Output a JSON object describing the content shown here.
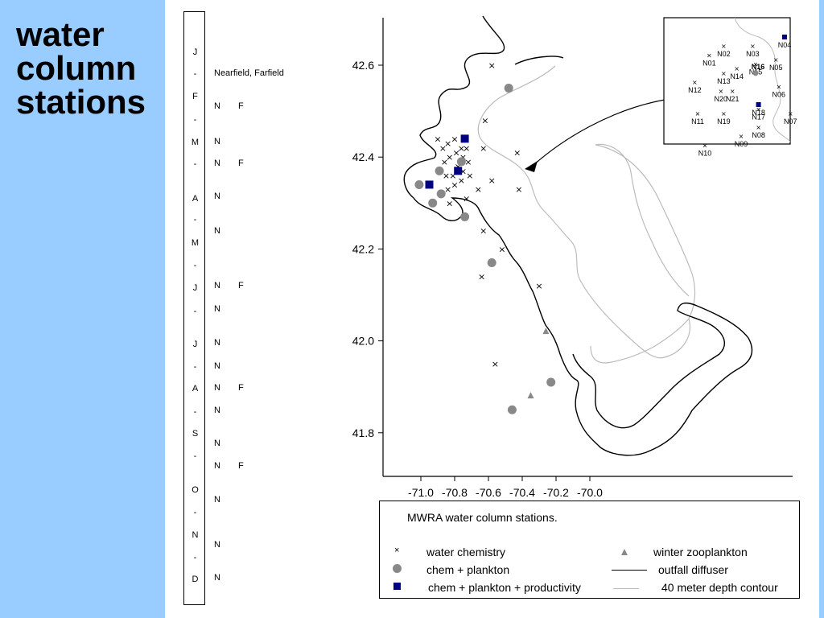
{
  "slide": {
    "title": "water\ncolumn\nstations",
    "colors": {
      "sidebar": "#99ccff",
      "station_gray": "#888888",
      "station_navy": "#000080"
    }
  },
  "timeline": {
    "months": [
      "J",
      "-",
      "F",
      "-",
      "M",
      "-",
      "A",
      "-",
      "M",
      "-",
      "J",
      "-",
      "J",
      "-",
      "A",
      "-",
      "S",
      "-",
      "O",
      "-",
      "N",
      "-",
      "D"
    ],
    "header": "Nearfield, Farfield",
    "survey_rows": [
      [
        "N",
        "F"
      ],
      [
        "N",
        ""
      ],
      [
        "N",
        "F"
      ],
      [
        "N",
        ""
      ],
      [
        "N",
        ""
      ],
      [
        "N",
        "F"
      ],
      [
        "N",
        ""
      ],
      [
        "N",
        ""
      ],
      [
        "N",
        ""
      ],
      [
        "N",
        "F"
      ],
      [
        "N",
        ""
      ],
      [
        "N",
        ""
      ],
      [
        "N",
        "F"
      ],
      [
        "N",
        ""
      ],
      [
        "N",
        ""
      ],
      [
        "N",
        ""
      ]
    ]
  },
  "map": {
    "x_ticks": [
      "-71.0",
      "-70.8",
      "-70.6",
      "-70.4",
      "-70.2",
      "-70.0"
    ],
    "y_ticks": [
      "42.6",
      "42.4",
      "42.2",
      "42.0",
      "41.8"
    ],
    "stations": {
      "water_chemistry": [
        [
          -70.58,
          42.6
        ],
        [
          -70.62,
          42.48
        ],
        [
          -70.63,
          42.42
        ],
        [
          -70.58,
          42.35
        ],
        [
          -70.43,
          42.41
        ],
        [
          -70.42,
          42.33
        ],
        [
          -70.63,
          42.24
        ],
        [
          -70.52,
          42.2
        ],
        [
          -70.64,
          42.14
        ],
        [
          -70.3,
          42.12
        ],
        [
          -70.56,
          41.95
        ],
        [
          -70.9,
          42.44
        ],
        [
          -70.87,
          42.42
        ],
        [
          -70.84,
          42.43
        ],
        [
          -70.8,
          42.44
        ],
        [
          -70.76,
          42.42
        ],
        [
          -70.73,
          42.42
        ],
        [
          -70.86,
          42.39
        ],
        [
          -70.83,
          42.4
        ],
        [
          -70.79,
          42.41
        ],
        [
          -70.75,
          42.4
        ],
        [
          -70.72,
          42.39
        ],
        [
          -70.85,
          42.36
        ],
        [
          -70.81,
          42.36
        ],
        [
          -70.78,
          42.38
        ],
        [
          -70.75,
          42.37
        ],
        [
          -70.71,
          42.36
        ],
        [
          -70.84,
          42.33
        ],
        [
          -70.8,
          42.34
        ],
        [
          -70.76,
          42.35
        ],
        [
          -70.73,
          42.31
        ],
        [
          -70.66,
          42.33
        ],
        [
          -70.83,
          42.3
        ]
      ],
      "chem_plankton": [
        [
          -70.48,
          42.55
        ],
        [
          -70.76,
          42.39
        ],
        [
          -70.89,
          42.37
        ],
        [
          -71.01,
          42.34
        ],
        [
          -70.88,
          42.32
        ],
        [
          -70.93,
          42.3
        ],
        [
          -70.74,
          42.27
        ],
        [
          -70.58,
          42.17
        ],
        [
          -70.46,
          41.85
        ],
        [
          -70.23,
          41.91
        ]
      ],
      "chem_plankton_productivity": [
        [
          -70.74,
          42.44
        ],
        [
          -70.78,
          42.37
        ],
        [
          -70.95,
          42.34
        ]
      ],
      "winter_zooplankton": [
        [
          -70.26,
          42.02
        ],
        [
          -70.35,
          41.88
        ]
      ]
    },
    "inset_stations": {
      "cross": [
        {
          "label": "N01",
          "x": 0.28,
          "y": 0.06
        },
        {
          "label": "N02",
          "x": 0.38,
          "y": 0.08
        },
        {
          "label": "N03",
          "x": 0.58,
          "y": 0.08
        },
        {
          "label": "N05",
          "x": 0.74,
          "y": 0.05
        },
        {
          "label": "N13",
          "x": 0.38,
          "y": 0.02
        },
        {
          "label": "N14",
          "x": 0.47,
          "y": 0.03
        },
        {
          "label": "N15",
          "x": 0.6,
          "y": 0.04
        },
        {
          "label": "N12",
          "x": 0.18,
          "y": 0.0
        },
        {
          "label": "N21",
          "x": 0.44,
          "y": -0.02
        },
        {
          "label": "N06",
          "x": 0.76,
          "y": -0.01
        },
        {
          "label": "N20",
          "x": 0.36,
          "y": -0.02
        },
        {
          "label": "N17",
          "x": 0.62,
          "y": -0.06
        },
        {
          "label": "N11",
          "x": 0.2,
          "y": -0.07
        },
        {
          "label": "N19",
          "x": 0.38,
          "y": -0.07
        },
        {
          "label": "N07",
          "x": 0.84,
          "y": -0.07
        },
        {
          "label": "N08",
          "x": 0.62,
          "y": -0.1
        },
        {
          "label": "N09",
          "x": 0.5,
          "y": -0.12
        },
        {
          "label": "N10",
          "x": 0.25,
          "y": -0.14
        }
      ],
      "circle": [
        {
          "label": "N16",
          "x": 0.6,
          "y": 0.02
        }
      ],
      "square": [
        {
          "label": "N04",
          "x": 0.8,
          "y": 0.1
        },
        {
          "label": "N18",
          "x": 0.62,
          "y": -0.05
        }
      ]
    }
  },
  "legend": {
    "caption": "MWRA water column stations.",
    "items": {
      "water_chemistry": "water chemistry",
      "chem_plankton": "chem + plankton",
      "chem_plankton_productivity": "chem + plankton + productivity",
      "winter_zooplankton": "winter zooplankton",
      "outfall_diffuser": "outfall diffuser",
      "depth_contour": "40 meter depth contour"
    }
  }
}
